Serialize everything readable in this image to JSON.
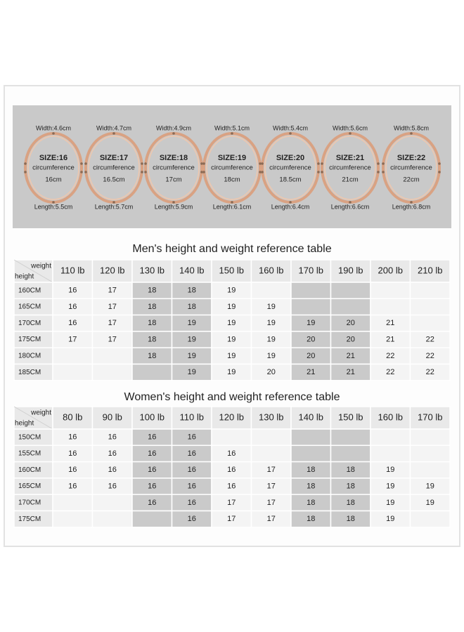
{
  "bracelets": [
    {
      "width": "Width:4.6cm",
      "size": "SIZE:16",
      "circumference": "circumference",
      "circ_value": "16cm",
      "length": "Length:5.5cm"
    },
    {
      "width": "Width:4.7cm",
      "size": "SIZE:17",
      "circumference": "circumference",
      "circ_value": "16.5cm",
      "length": "Length:5.7cm"
    },
    {
      "width": "Width:4.9cm",
      "size": "SIZE:18",
      "circumference": "circumference",
      "circ_value": "17cm",
      "length": "Length:5.9cm"
    },
    {
      "width": "Width:5.1cm",
      "size": "SIZE:19",
      "circumference": "circumference",
      "circ_value": "18cm",
      "length": "Length:6.1cm"
    },
    {
      "width": "Width:5.4cm",
      "size": "SIZE:20",
      "circumference": "circumference",
      "circ_value": "18.5cm",
      "length": "Length:6.4cm"
    },
    {
      "width": "Width:5.6cm",
      "size": "SIZE:21",
      "circumference": "circumference",
      "circ_value": "21cm",
      "length": "Length:6.6cm"
    },
    {
      "width": "Width:5.8cm",
      "size": "SIZE:22",
      "circumference": "circumference",
      "circ_value": "22cm",
      "length": "Length:6.8cm"
    }
  ],
  "tables": [
    {
      "title": "Men's height and weight reference table",
      "corner": {
        "top": "weight",
        "bottom": "height"
      },
      "columns": [
        "110 lb",
        "120 lb",
        "130 lb",
        "140 lb",
        "150 lb",
        "160 lb",
        "170 lb",
        "190 lb",
        "200 lb",
        "210 lb"
      ],
      "rows": [
        {
          "label": "160CM",
          "cells": [
            "16",
            "17",
            "18",
            "18",
            "19",
            null,
            null,
            null,
            null,
            null
          ]
        },
        {
          "label": "165CM",
          "cells": [
            "16",
            "17",
            "18",
            "18",
            "19",
            "19",
            null,
            null,
            null,
            null
          ]
        },
        {
          "label": "170CM",
          "cells": [
            "16",
            "17",
            "18",
            "19",
            "19",
            "19",
            "19",
            "20",
            "21",
            null
          ]
        },
        {
          "label": "175CM",
          "cells": [
            "17",
            "17",
            "18",
            "19",
            "19",
            "19",
            "20",
            "20",
            "21",
            "22"
          ]
        },
        {
          "label": "180CM",
          "cells": [
            null,
            null,
            "18",
            "19",
            "19",
            "19",
            "20",
            "21",
            "22",
            "22"
          ]
        },
        {
          "label": "185CM",
          "cells": [
            null,
            null,
            null,
            "19",
            "19",
            "20",
            "21",
            "21",
            "22",
            "22"
          ]
        }
      ]
    },
    {
      "title": "Women's height and weight reference table",
      "corner": {
        "top": "weight",
        "bottom": "height"
      },
      "columns": [
        "80 lb",
        "90 lb",
        "100 lb",
        "110 lb",
        "120 lb",
        "130 lb",
        "140 lb",
        "150 lb",
        "160 lb",
        "170 lb"
      ],
      "rows": [
        {
          "label": "150CM",
          "cells": [
            "16",
            "16",
            "16",
            "16",
            null,
            null,
            null,
            null,
            null,
            null
          ]
        },
        {
          "label": "155CM",
          "cells": [
            "16",
            "16",
            "16",
            "16",
            "16",
            null,
            null,
            null,
            null,
            null
          ]
        },
        {
          "label": "160CM",
          "cells": [
            "16",
            "16",
            "16",
            "16",
            "16",
            "17",
            "18",
            "18",
            "19",
            null
          ]
        },
        {
          "label": "165CM",
          "cells": [
            "16",
            "16",
            "16",
            "16",
            "16",
            "17",
            "18",
            "18",
            "19",
            "19"
          ]
        },
        {
          "label": "170CM",
          "cells": [
            null,
            null,
            "16",
            "16",
            "17",
            "17",
            "18",
            "18",
            "19",
            "19"
          ]
        },
        {
          "label": "175CM",
          "cells": [
            null,
            null,
            null,
            "16",
            "17",
            "17",
            "18",
            "18",
            "19",
            null
          ]
        }
      ]
    }
  ]
}
